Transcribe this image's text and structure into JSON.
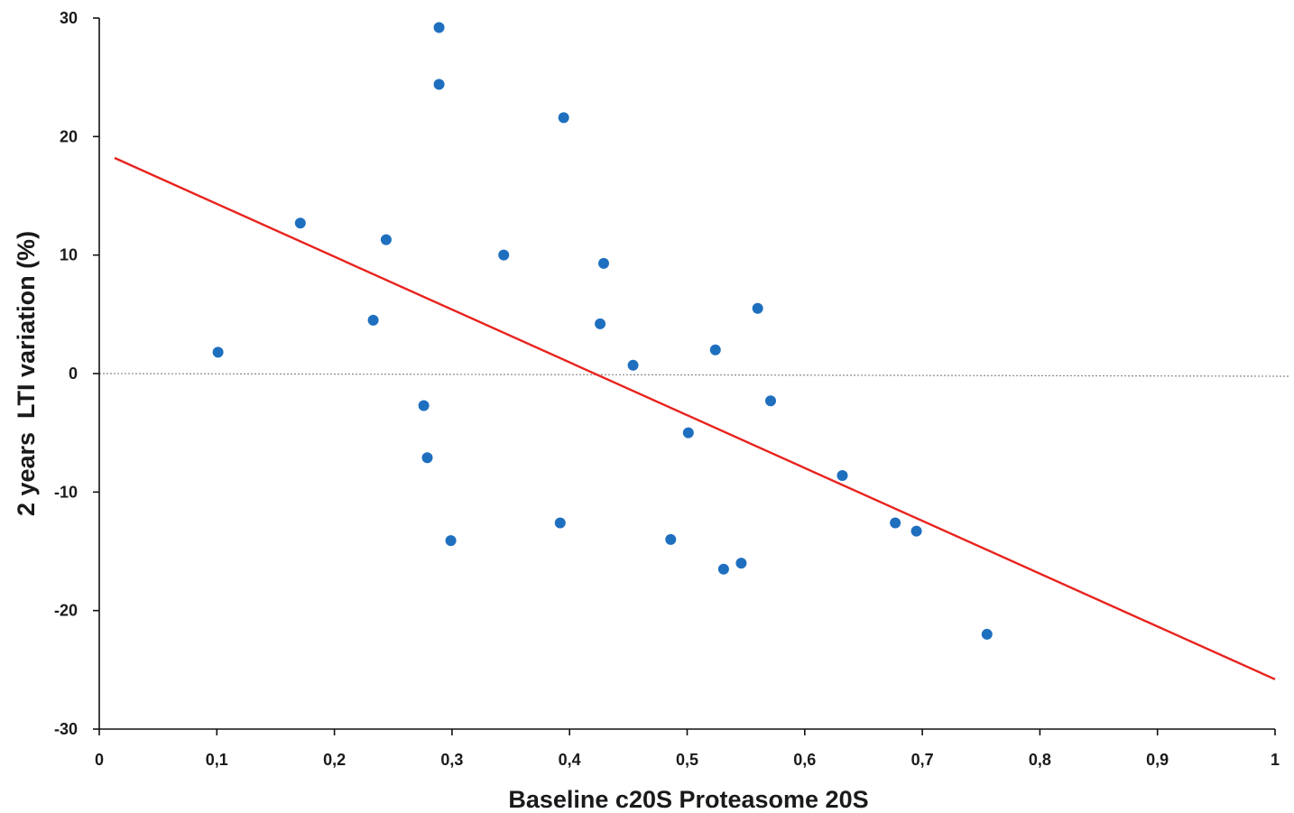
{
  "chart_data": {
    "type": "scatter",
    "title": "",
    "xlabel": "Baseline c20S Proteasome 20S",
    "ylabel": "2 years  LTI variation (%)",
    "xlim": [
      0,
      1
    ],
    "ylim": [
      -30,
      30
    ],
    "x_ticks": [
      0,
      0.1,
      0.2,
      0.3,
      0.4,
      0.5,
      0.6,
      0.7,
      0.8,
      0.9,
      1
    ],
    "x_tick_labels": [
      "0",
      "0,1",
      "0,2",
      "0,3",
      "0,4",
      "0,5",
      "0,6",
      "0,7",
      "0,8",
      "0,9",
      "1"
    ],
    "y_ticks": [
      30,
      20,
      10,
      0,
      -10,
      -20,
      -30
    ],
    "y_tick_labels": [
      "30",
      "20",
      "10",
      "0",
      "-10",
      "-20",
      "-30"
    ],
    "grid": false,
    "legend": "none",
    "reference_line": {
      "y": 0,
      "style": "dotted",
      "color": "#8a8a8a"
    },
    "trendline": {
      "x": [
        0.013,
        1.0
      ],
      "y": [
        18.2,
        -25.8
      ],
      "color": "#e8231e"
    },
    "marker_color": "#1f6fbf",
    "points": [
      {
        "x": 0.101,
        "y": 1.8
      },
      {
        "x": 0.171,
        "y": 12.7
      },
      {
        "x": 0.233,
        "y": 4.5
      },
      {
        "x": 0.244,
        "y": 11.3
      },
      {
        "x": 0.276,
        "y": -2.7
      },
      {
        "x": 0.279,
        "y": -7.1
      },
      {
        "x": 0.289,
        "y": 29.2
      },
      {
        "x": 0.289,
        "y": 24.4
      },
      {
        "x": 0.299,
        "y": -14.1
      },
      {
        "x": 0.344,
        "y": 10.0
      },
      {
        "x": 0.392,
        "y": -12.6
      },
      {
        "x": 0.395,
        "y": 21.6
      },
      {
        "x": 0.426,
        "y": 4.2
      },
      {
        "x": 0.429,
        "y": 9.3
      },
      {
        "x": 0.454,
        "y": 0.7
      },
      {
        "x": 0.486,
        "y": -14.0
      },
      {
        "x": 0.501,
        "y": -5.0
      },
      {
        "x": 0.524,
        "y": 2.0
      },
      {
        "x": 0.531,
        "y": -16.5
      },
      {
        "x": 0.546,
        "y": -16.0
      },
      {
        "x": 0.56,
        "y": 5.5
      },
      {
        "x": 0.571,
        "y": -2.3
      },
      {
        "x": 0.632,
        "y": -8.6
      },
      {
        "x": 0.677,
        "y": -12.6
      },
      {
        "x": 0.695,
        "y": -13.3
      },
      {
        "x": 0.755,
        "y": -22.0
      }
    ]
  }
}
